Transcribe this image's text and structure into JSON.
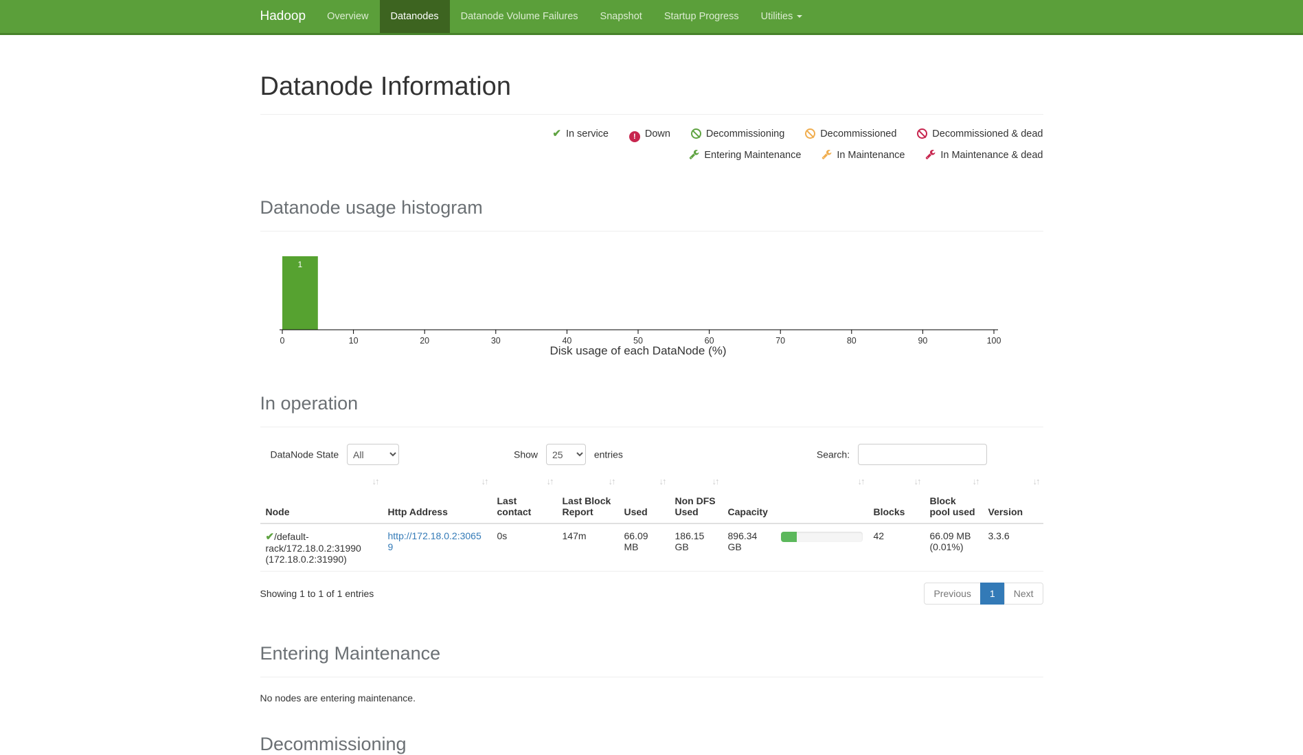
{
  "navbar": {
    "brand": "Hadoop",
    "items": [
      {
        "label": "Overview",
        "active": false
      },
      {
        "label": "Datanodes",
        "active": true
      },
      {
        "label": "Datanode Volume Failures",
        "active": false
      },
      {
        "label": "Snapshot",
        "active": false
      },
      {
        "label": "Startup Progress",
        "active": false
      },
      {
        "label": "Utilities",
        "active": false,
        "dropdown": true
      }
    ]
  },
  "page": {
    "title": "Datanode Information"
  },
  "legend": {
    "row1": [
      {
        "icon": "check-icon",
        "color": "#5fa341",
        "label": "In service"
      },
      {
        "icon": "exclamation-circle-icon",
        "color": "#c7254e",
        "label": "Down"
      },
      {
        "icon": "ban-icon",
        "color": "#5fa341",
        "label": "Decommissioning"
      },
      {
        "icon": "ban-icon",
        "color": "#f0ad4e",
        "label": "Decommissioned"
      },
      {
        "icon": "ban-icon",
        "color": "#c7254e",
        "label": "Decommissioned & dead"
      }
    ],
    "row2": [
      {
        "icon": "wrench-icon",
        "color": "#5fa341",
        "label": "Entering Maintenance"
      },
      {
        "icon": "wrench-icon",
        "color": "#f0ad4e",
        "label": "In Maintenance"
      },
      {
        "icon": "wrench-icon",
        "color": "#c7254e",
        "label": "In Maintenance & dead"
      }
    ]
  },
  "sections": {
    "histogram_title": "Datanode usage histogram",
    "in_operation_title": "In operation",
    "entering_maintenance_title": "Entering Maintenance",
    "entering_maintenance_empty": "No nodes are entering maintenance.",
    "decommissioning_title": "Decommissioning"
  },
  "chart_data": {
    "type": "bar",
    "title": "Datanode usage histogram",
    "xlabel": "Disk usage of each DataNode (%)",
    "ylabel": "",
    "xlim": [
      0,
      100
    ],
    "x_ticks": [
      0,
      10,
      20,
      30,
      40,
      50,
      60,
      70,
      80,
      90,
      100
    ],
    "grid": false,
    "bars": [
      {
        "x0": 0,
        "x1": 5,
        "value": 1,
        "label": "1"
      }
    ],
    "bar_color": "#56a230",
    "bar_label_color": "#ffffff"
  },
  "controls": {
    "state_label": "DataNode State",
    "state_value": "All",
    "show_label": "Show",
    "show_value": "25",
    "entries_label": "entries",
    "search_label": "Search:",
    "search_value": ""
  },
  "table": {
    "columns": [
      "Node",
      "Http Address",
      "Last contact",
      "Last Block Report",
      "Used",
      "Non DFS Used",
      "Capacity",
      "Blocks",
      "Block pool used",
      "Version"
    ],
    "rows": [
      {
        "node_state_icon": "check-icon",
        "node": "/default-rack/172.18.0.2:31990 (172.18.0.2:31990)",
        "http_address": "http://172.18.0.2:30659",
        "last_contact": "0s",
        "last_block_report": "147m",
        "used": "66.09 MB",
        "non_dfs_used": "186.15 GB",
        "capacity": "896.34 GB",
        "capacity_bar_percent": 20,
        "blocks": "42",
        "block_pool_used": "66.09 MB (0.01%)",
        "version": "3.3.6"
      }
    ],
    "summary": "Showing 1 to 1 of 1 entries"
  },
  "pagination": {
    "previous": "Previous",
    "page": "1",
    "next": "Next"
  },
  "colors": {
    "navbar_bg": "#5b9f3a",
    "navbar_active_bg": "#3d6420",
    "navbar_border": "#47822a",
    "success_green": "#5fa341",
    "warning_orange": "#f0ad4e",
    "danger_red": "#c7254e",
    "link_blue": "#337ab7",
    "pagination_active_bg": "#337ab7",
    "histogram_bar": "#56a230",
    "progress_fill": "#5cb85c",
    "section_heading": "#6b7074"
  }
}
